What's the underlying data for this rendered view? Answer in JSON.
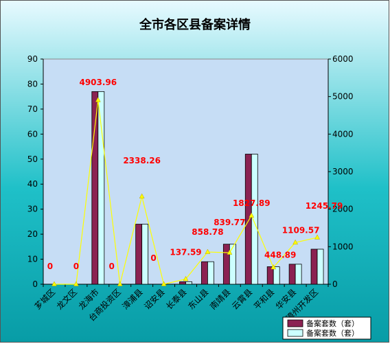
{
  "chart_data": {
    "type": "bar",
    "title": "全市各区县备案详情",
    "categories": [
      "芗城区",
      "龙文区",
      "龙海市",
      "台商投资区",
      "漳浦县",
      "诏安县",
      "长泰县",
      "东山县",
      "南靖县",
      "云霄县",
      "平和县",
      "华安县",
      "漳州开发区"
    ],
    "series": [
      {
        "name": "备案套数（套）",
        "type": "bar",
        "axis": "left",
        "color": "#8B2252",
        "values": [
          0,
          0,
          77,
          0,
          24,
          0,
          1,
          9,
          16,
          52,
          7,
          8,
          14
        ]
      },
      {
        "name": "备案套数（套）",
        "type": "bar",
        "axis": "left",
        "color": "#CCFFFF",
        "values": [
          0,
          0,
          77,
          0,
          24,
          0,
          1,
          9,
          16,
          52,
          7,
          8,
          14
        ]
      },
      {
        "name": "",
        "type": "line",
        "axis": "right",
        "color": "#FFFF00",
        "values": [
          0,
          0,
          4903.96,
          0,
          2338.26,
          0,
          137.59,
          858.78,
          839.77,
          1827.89,
          448.89,
          1109.57,
          1245.79
        ],
        "labels": [
          "0",
          "0",
          "4903.96",
          "0",
          "2338.26",
          "0",
          "137.59",
          "858.78",
          "839.77",
          "1827.89",
          "448.89",
          "1109.57",
          "1245.79"
        ]
      }
    ],
    "ylim_left": [
      0,
      90
    ],
    "yticks_left": [
      "0",
      "10",
      "20",
      "30",
      "40",
      "50",
      "60",
      "70",
      "80",
      "90"
    ],
    "ylim_right": [
      0,
      6000
    ],
    "yticks_right": [
      "0",
      "1000",
      "2000",
      "3000",
      "4000",
      "5000",
      "6000"
    ],
    "grid": false,
    "legend_position": "bottom-right",
    "colors": {
      "background": "#0FB8B8",
      "plot_area": "#C6DDF5",
      "label": "#FF0000"
    }
  }
}
